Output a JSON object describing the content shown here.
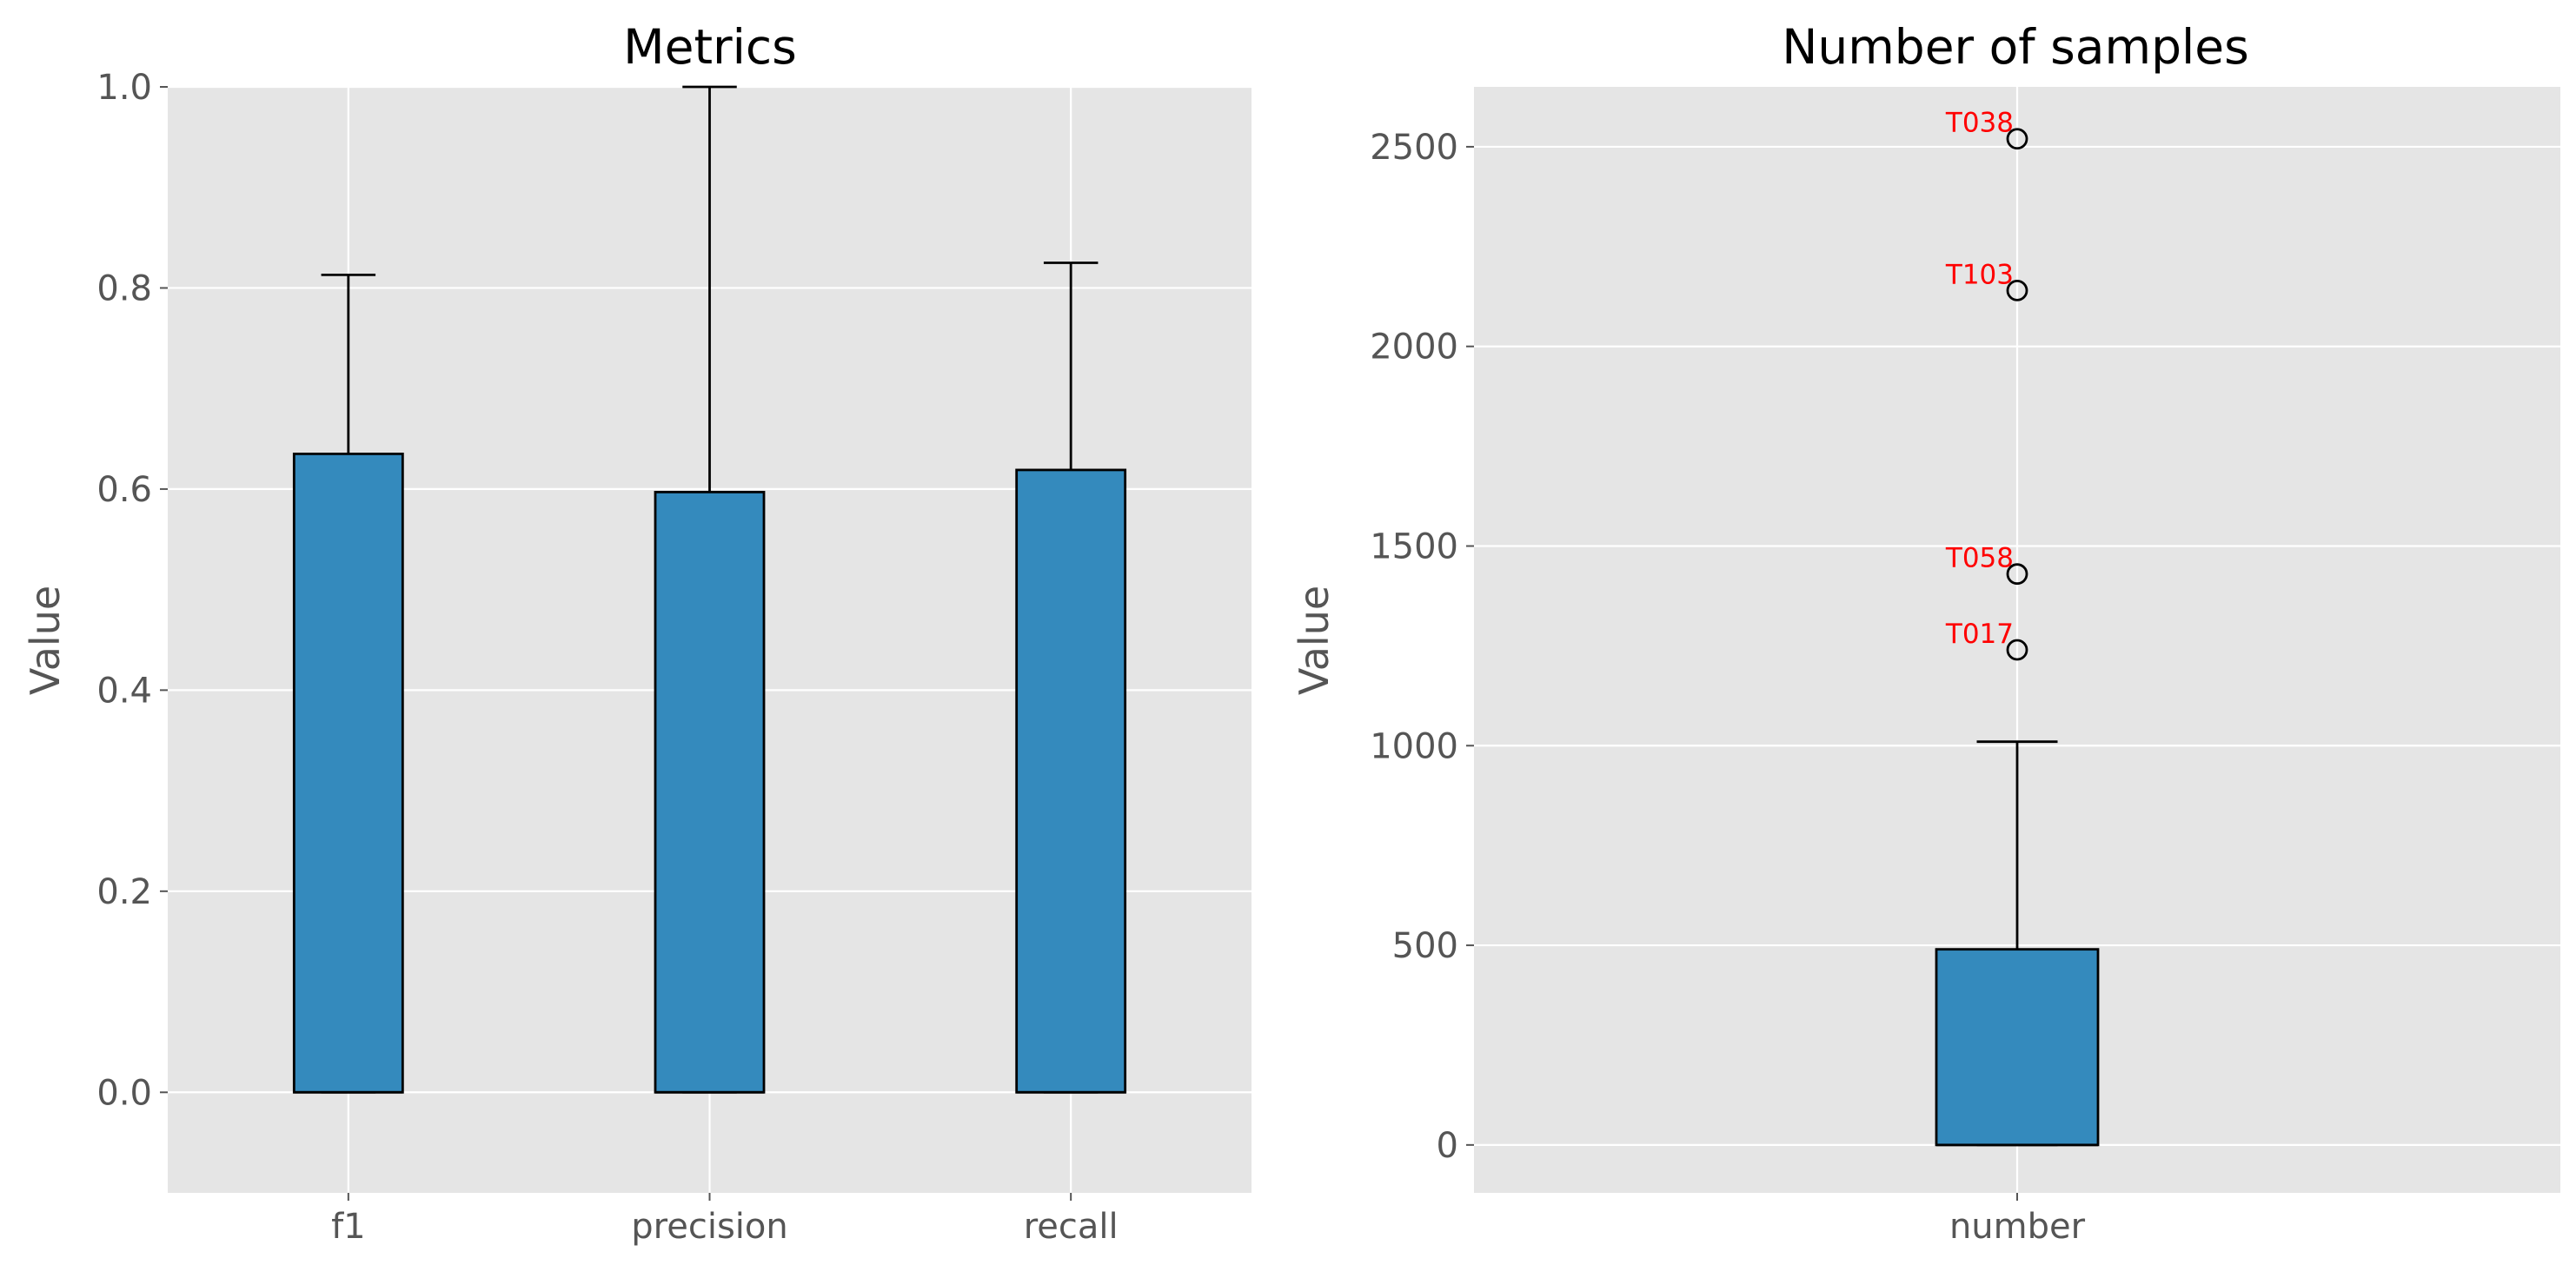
{
  "chart_data": [
    {
      "type": "box",
      "title": "Metrics",
      "ylabel": "Value",
      "ylim": [
        -0.1,
        1.0
      ],
      "yticks": [
        "0.0",
        "0.2",
        "0.4",
        "0.6",
        "0.8",
        "1.0"
      ],
      "ytick_values": [
        0.0,
        0.2,
        0.4,
        0.6,
        0.8,
        1.0
      ],
      "categories": [
        "f1",
        "precision",
        "recall"
      ],
      "boxes": [
        {
          "label": "f1",
          "q1": 0.0,
          "q3": 0.635,
          "whisker_low": 0.0,
          "whisker_high": 0.813
        },
        {
          "label": "precision",
          "q1": 0.0,
          "q3": 0.597,
          "whisker_low": 0.0,
          "whisker_high": 1.0
        },
        {
          "label": "recall",
          "q1": 0.0,
          "q3": 0.619,
          "whisker_low": 0.0,
          "whisker_high": 0.825
        }
      ],
      "grid": true,
      "box_color": "#348ABD",
      "background": "#E5E5E5"
    },
    {
      "type": "box",
      "title": "Number of samples",
      "ylabel": "Value",
      "ylim": [
        -120,
        2650
      ],
      "yticks": [
        "0",
        "500",
        "1000",
        "1500",
        "2000",
        "2500"
      ],
      "ytick_values": [
        0,
        500,
        1000,
        1500,
        2000,
        2500
      ],
      "categories": [
        "number"
      ],
      "boxes": [
        {
          "label": "number",
          "q1": 0,
          "q3": 490,
          "whisker_low": 0,
          "whisker_high": 1010
        }
      ],
      "outliers": [
        {
          "label": "T038",
          "value": 2520
        },
        {
          "label": "T103",
          "value": 2140
        },
        {
          "label": "T058",
          "value": 1430
        },
        {
          "label": "T017",
          "value": 1240
        }
      ],
      "annotation_color": "#FF0000",
      "grid": true,
      "box_color": "#348ABD",
      "background": "#E5E5E5"
    }
  ]
}
